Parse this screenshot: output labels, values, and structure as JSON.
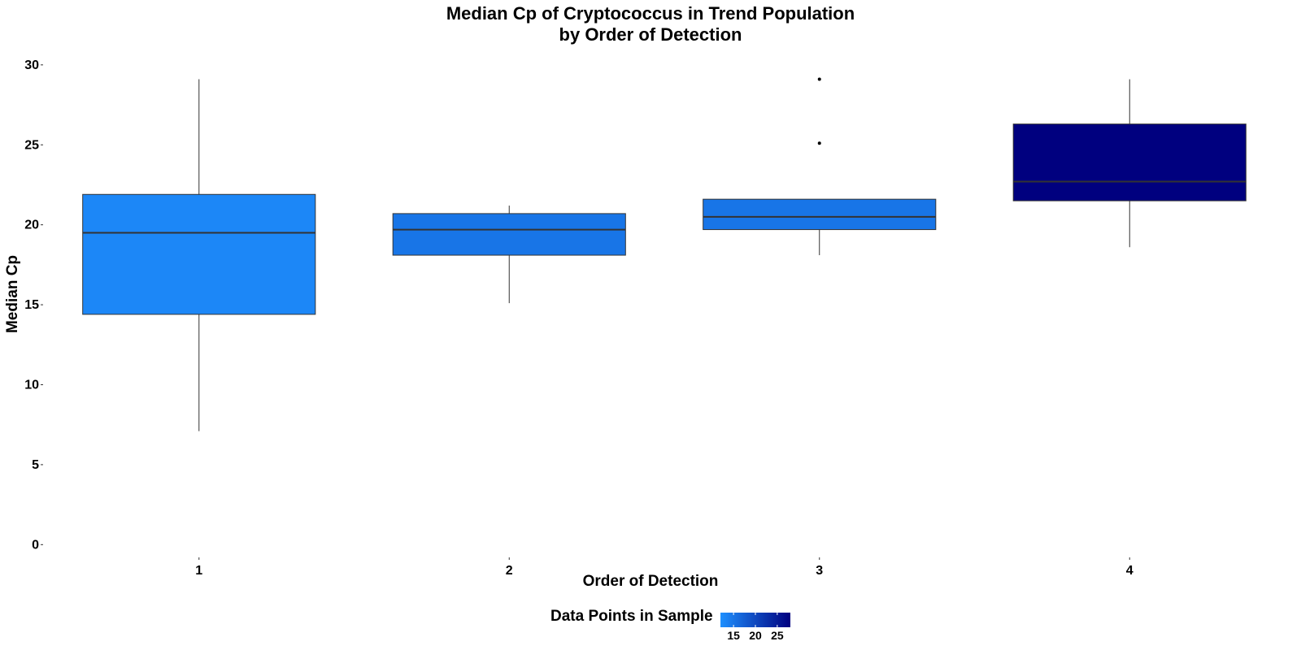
{
  "chart_data": {
    "type": "boxplot",
    "title_line1": "Median Cp of Cryptococcus in Trend Population",
    "title_line2": "by Order of Detection",
    "xlabel": "Order of Detection",
    "ylabel": "Median Cp",
    "ylim": [
      -1,
      30.5
    ],
    "yticks": [
      0,
      5,
      10,
      15,
      20,
      25,
      30
    ],
    "categories": [
      "1",
      "2",
      "3",
      "4"
    ],
    "boxes": [
      {
        "category": "1",
        "whisker_low": 7.1,
        "q1": 14.4,
        "median": 19.5,
        "q3": 21.9,
        "whisker_high": 29.1,
        "outliers": [],
        "points_in_sample": 13
      },
      {
        "category": "2",
        "whisker_low": 15.1,
        "q1": 18.1,
        "median": 19.7,
        "q3": 20.7,
        "whisker_high": 21.2,
        "outliers": [],
        "points_in_sample": 15
      },
      {
        "category": "3",
        "whisker_low": 18.1,
        "q1": 19.7,
        "median": 20.5,
        "q3": 21.6,
        "whisker_high": 21.6,
        "outliers": [
          25.1,
          29.1
        ],
        "points_in_sample": 15
      },
      {
        "category": "4",
        "whisker_low": 18.6,
        "q1": 21.5,
        "median": 22.7,
        "q3": 26.3,
        "whisker_high": 29.1,
        "outliers": [],
        "points_in_sample": 28
      }
    ],
    "grid": false,
    "legend": {
      "title": "Data Points in Sample",
      "placement": "bottom",
      "ticks": [
        15,
        20,
        25
      ],
      "range": [
        12,
        28
      ],
      "color_low": "#1e90ff",
      "color_high": "#00007f"
    }
  }
}
